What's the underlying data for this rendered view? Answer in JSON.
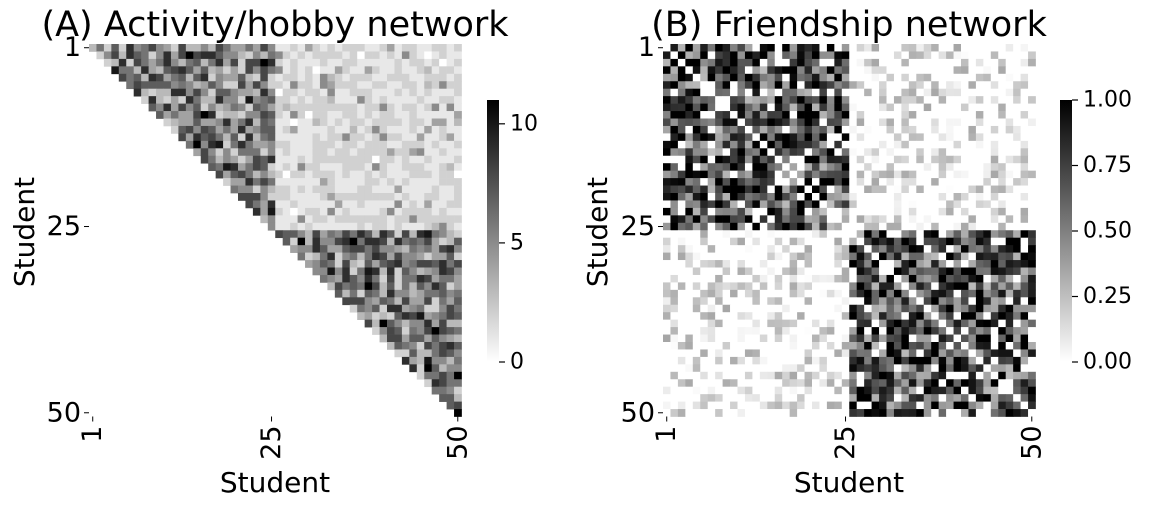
{
  "chart_data": [
    {
      "type": "heatmap",
      "title": "(A) Activity/hobby network",
      "xlabel": "Student",
      "ylabel": "Student",
      "n": 50,
      "x_ticks": [
        "1",
        "25",
        "50"
      ],
      "y_ticks": [
        "1",
        "25",
        "50"
      ],
      "tick_positions": [
        1,
        25,
        50
      ],
      "mask": "upper-triangle",
      "groups": [
        {
          "start": 1,
          "end": 25
        },
        {
          "start": 26,
          "end": 50
        }
      ],
      "colorbar": {
        "min": 0,
        "max": 11,
        "ticks": [
          0,
          5,
          10
        ],
        "tick_labels": [
          "0",
          "5",
          "10"
        ]
      },
      "value_model": {
        "within_group_mean": 5.5,
        "between_group_mean": 1.5
      },
      "seed": 7,
      "colormap": [
        "#ffffff",
        "#000000"
      ]
    },
    {
      "type": "heatmap",
      "title": "(B) Friendship network",
      "xlabel": "Student",
      "ylabel": "Student",
      "n": 50,
      "x_ticks": [
        "1",
        "25",
        "50"
      ],
      "y_ticks": [
        "1",
        "25",
        "50"
      ],
      "tick_positions": [
        1,
        25,
        50
      ],
      "mask": "none",
      "groups": [
        {
          "start": 1,
          "end": 25
        },
        {
          "start": 26,
          "end": 50
        }
      ],
      "colorbar": {
        "min": 0,
        "max": 1,
        "ticks": [
          0,
          0.25,
          0.5,
          0.75,
          1
        ],
        "tick_labels": [
          "0.00",
          "0.25",
          "0.50",
          "0.75",
          "1.00"
        ]
      },
      "value_model": {
        "within_group_mean": 0.7,
        "between_group_mean": 0.15,
        "diagonal": 0
      },
      "seed": 13,
      "colormap": [
        "#ffffff",
        "#000000"
      ]
    }
  ]
}
